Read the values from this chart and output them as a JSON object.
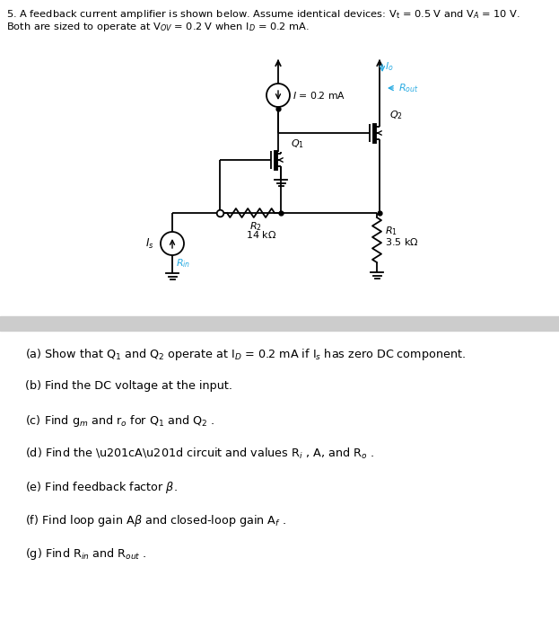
{
  "bg_color": "#ffffff",
  "gray_bar_color": "#cccccc",
  "circuit_color": "#000000",
  "cyan_color": "#29abe2",
  "questions": [
    "(a) Show that Q₁ and Q₂ operate at Iᴅ = 0.2 mA if Iₛ has zero DC component.",
    "(b) Find the DC voltage at the input.",
    "(c) Find gₘ and rₒ for Q₁ and Q₂ .",
    "(d) Find the “A” circuit and values Rᵢ , A, and Rₒ .",
    "(e) Find feedback factor β.",
    "(f) Find loop gain Aβ and closed-loop gain Af .",
    "(g) Find Rᵢₙ and Rₒᵤₜ ."
  ]
}
